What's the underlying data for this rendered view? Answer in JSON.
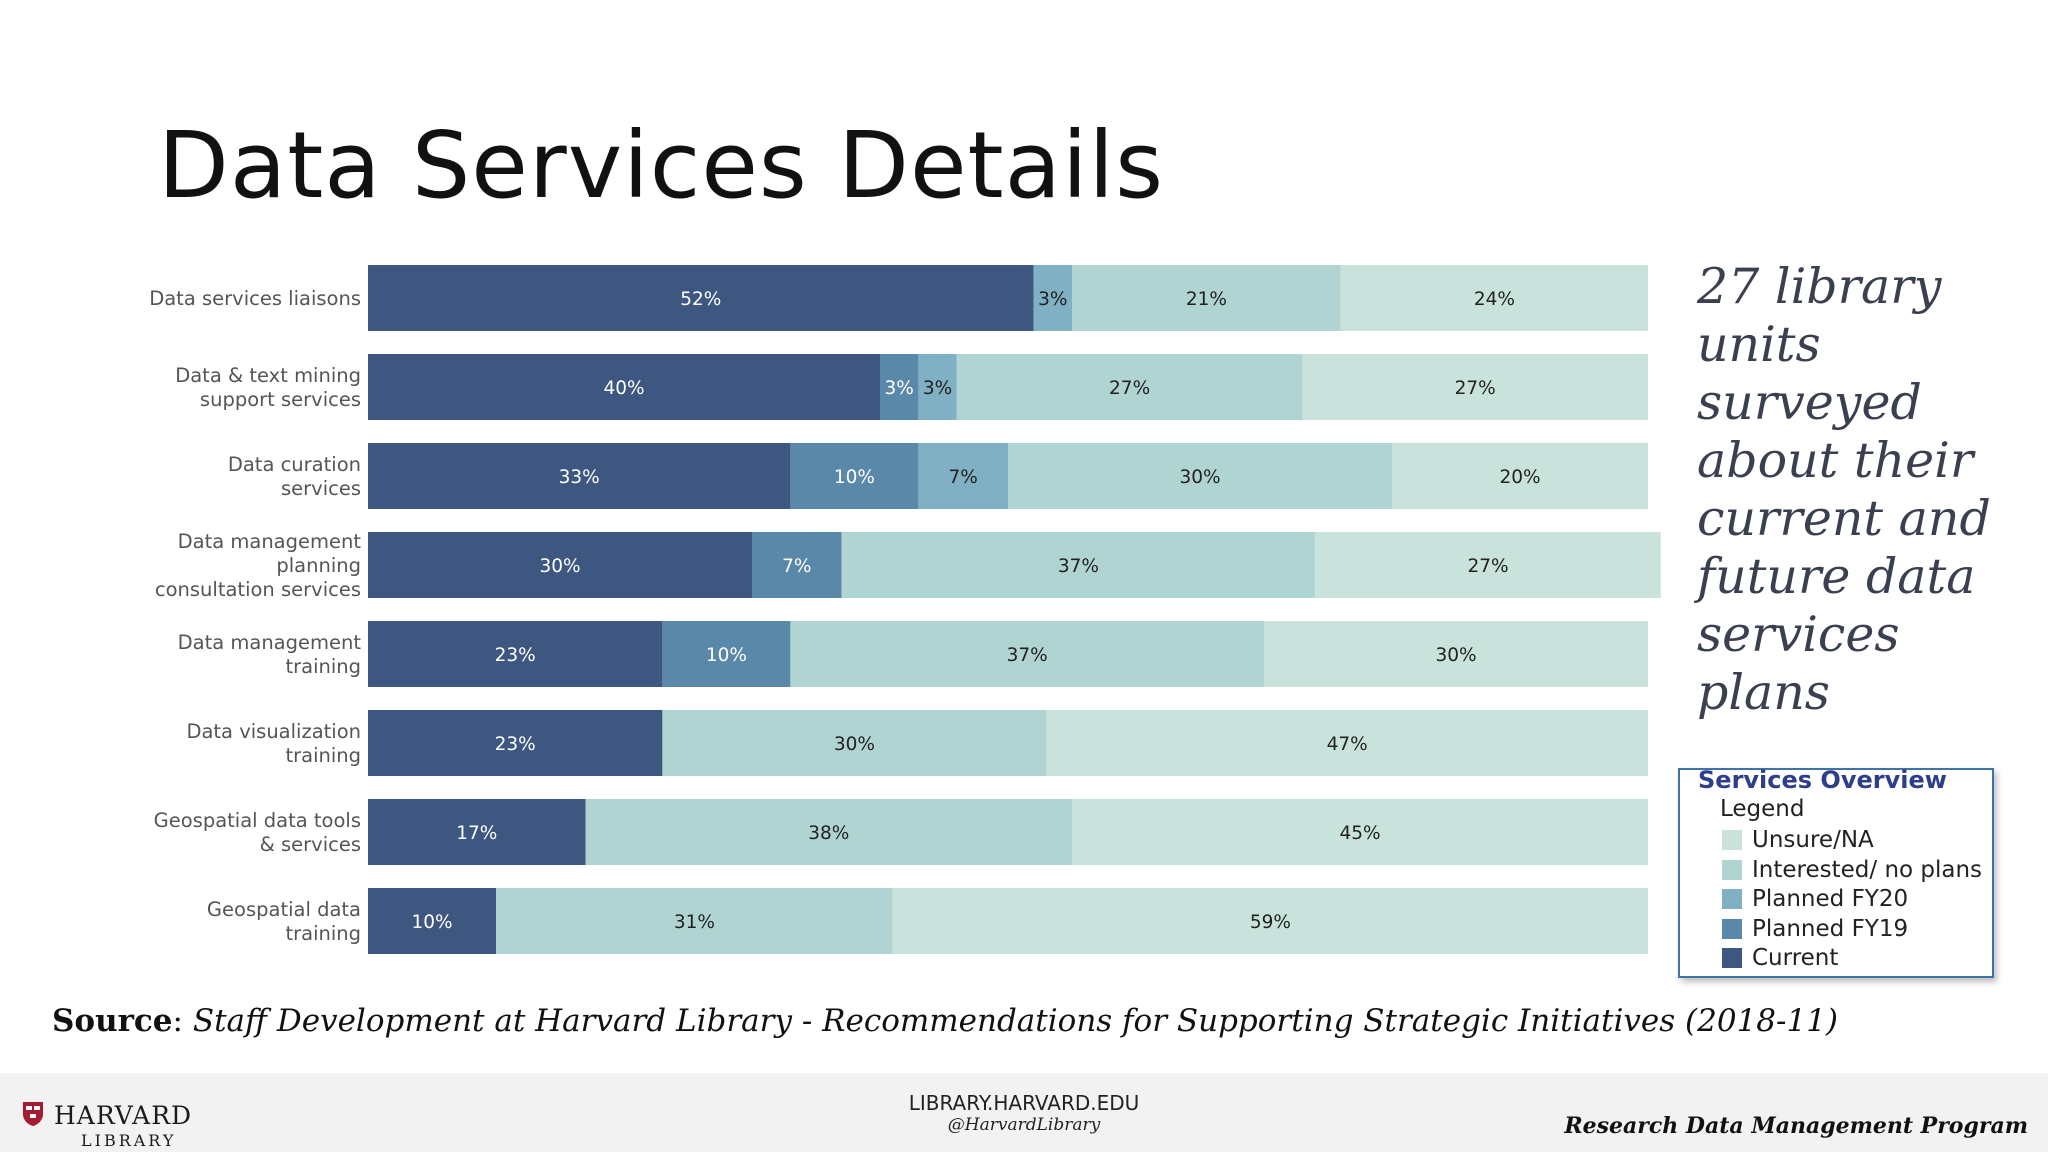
{
  "title": "Data Services Details",
  "sidenote": "27 library units surveyed about their current and future data services plans",
  "legend": {
    "title": "Services Overview",
    "subtitle": "Legend",
    "items": [
      {
        "label": "Unsure/NA",
        "color": "#c9e3dc"
      },
      {
        "label": "Interested/ no plans",
        "color": "#b0d4d2"
      },
      {
        "label": "Planned FY20",
        "color": "#7fb0c3"
      },
      {
        "label": "Planned FY19",
        "color": "#5a88a8"
      },
      {
        "label": "Current",
        "color": "#3d5780"
      }
    ]
  },
  "chart_data": {
    "type": "bar",
    "orientation": "horizontal",
    "stacked": true,
    "categories": [
      "Data services liaisons",
      "Data & text mining support services",
      "Data curation services",
      "Data management planning consultation services",
      "Data management training",
      "Data visualization training",
      "Geospatial data tools & services",
      "Geospatial data training"
    ],
    "category_lines": [
      [
        "Data services liaisons"
      ],
      [
        "Data & text mining",
        "support services"
      ],
      [
        "Data curation",
        "services"
      ],
      [
        "Data management",
        "planning",
        "consultation services"
      ],
      [
        "Data management",
        "training"
      ],
      [
        "Data visualization",
        "training"
      ],
      [
        "Geospatial data tools",
        "& services"
      ],
      [
        "Geospatial data",
        "training"
      ]
    ],
    "series": [
      {
        "name": "Current",
        "color": "#3d5780",
        "label_color": "#ffffff",
        "values": [
          52,
          40,
          33,
          30,
          23,
          23,
          17,
          10
        ]
      },
      {
        "name": "Planned FY19",
        "color": "#5a88a8",
        "label_color": "#ffffff",
        "values": [
          0,
          3,
          10,
          7,
          10,
          0,
          0,
          0
        ]
      },
      {
        "name": "Planned FY20",
        "color": "#7fb0c3",
        "label_color": "#222222",
        "values": [
          3,
          3,
          7,
          0,
          0,
          0,
          0,
          0
        ]
      },
      {
        "name": "Interested/ no plans",
        "color": "#b0d4d2",
        "label_color": "#222222",
        "values": [
          21,
          27,
          30,
          37,
          37,
          30,
          38,
          31
        ]
      },
      {
        "name": "Unsure/NA",
        "color": "#c9e3dc",
        "label_color": "#222222",
        "values": [
          24,
          27,
          20,
          27,
          30,
          47,
          45,
          59
        ]
      }
    ],
    "value_suffix": "%",
    "xlim": [
      0,
      100
    ],
    "grid": false
  },
  "source": {
    "label": "Source",
    "sep": ": ",
    "text": "Staff Development at Harvard Library - Recommendations for Supporting Strategic Initiatives (2018-11)"
  },
  "footer": {
    "logo_name": "HARVARD",
    "logo_sub": "LIBRARY",
    "url": "LIBRARY.HARVARD.EDU",
    "handle": "@HarvardLibrary",
    "program": "Research Data Management Program"
  }
}
